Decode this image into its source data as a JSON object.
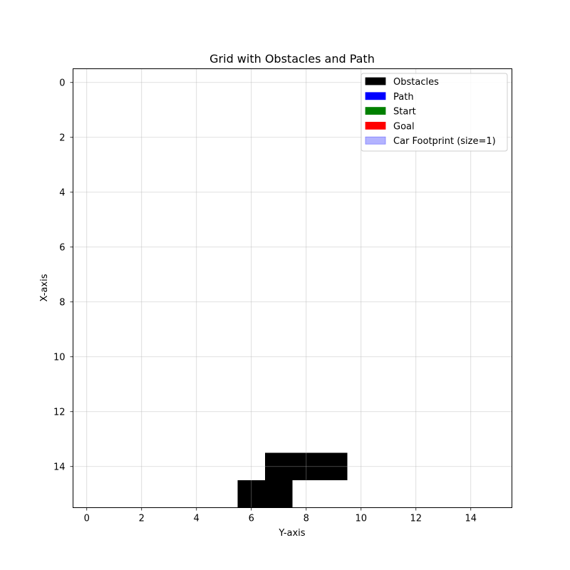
{
  "chart_data": {
    "type": "heatmap",
    "title": "Grid with Obstacles and Path",
    "xlabel": "Y-axis",
    "ylabel": "X-axis",
    "xlim": [
      -0.5,
      15.5
    ],
    "ylim": [
      15.5,
      -0.5
    ],
    "y_inverted": true,
    "grid": true,
    "xticks": [
      0,
      2,
      4,
      6,
      8,
      10,
      12,
      14
    ],
    "yticks": [
      0,
      2,
      4,
      6,
      8,
      10,
      12,
      14
    ],
    "legend_position": "top-right",
    "legend": [
      {
        "label": "Obstacles",
        "color": "#000000"
      },
      {
        "label": "Path",
        "color": "#0000ff"
      },
      {
        "label": "Start",
        "color": "#008000"
      },
      {
        "label": "Goal",
        "color": "#ff0000"
      },
      {
        "label": "Car Footprint (size=1)",
        "color": "#b3b3ff"
      }
    ],
    "obstacle_cells": [
      {
        "x": 14,
        "y": 7
      },
      {
        "x": 14,
        "y": 8
      },
      {
        "x": 14,
        "y": 9
      },
      {
        "x": 15,
        "y": 6
      },
      {
        "x": 15,
        "y": 7
      }
    ],
    "path": [],
    "start": null,
    "goal": null
  }
}
